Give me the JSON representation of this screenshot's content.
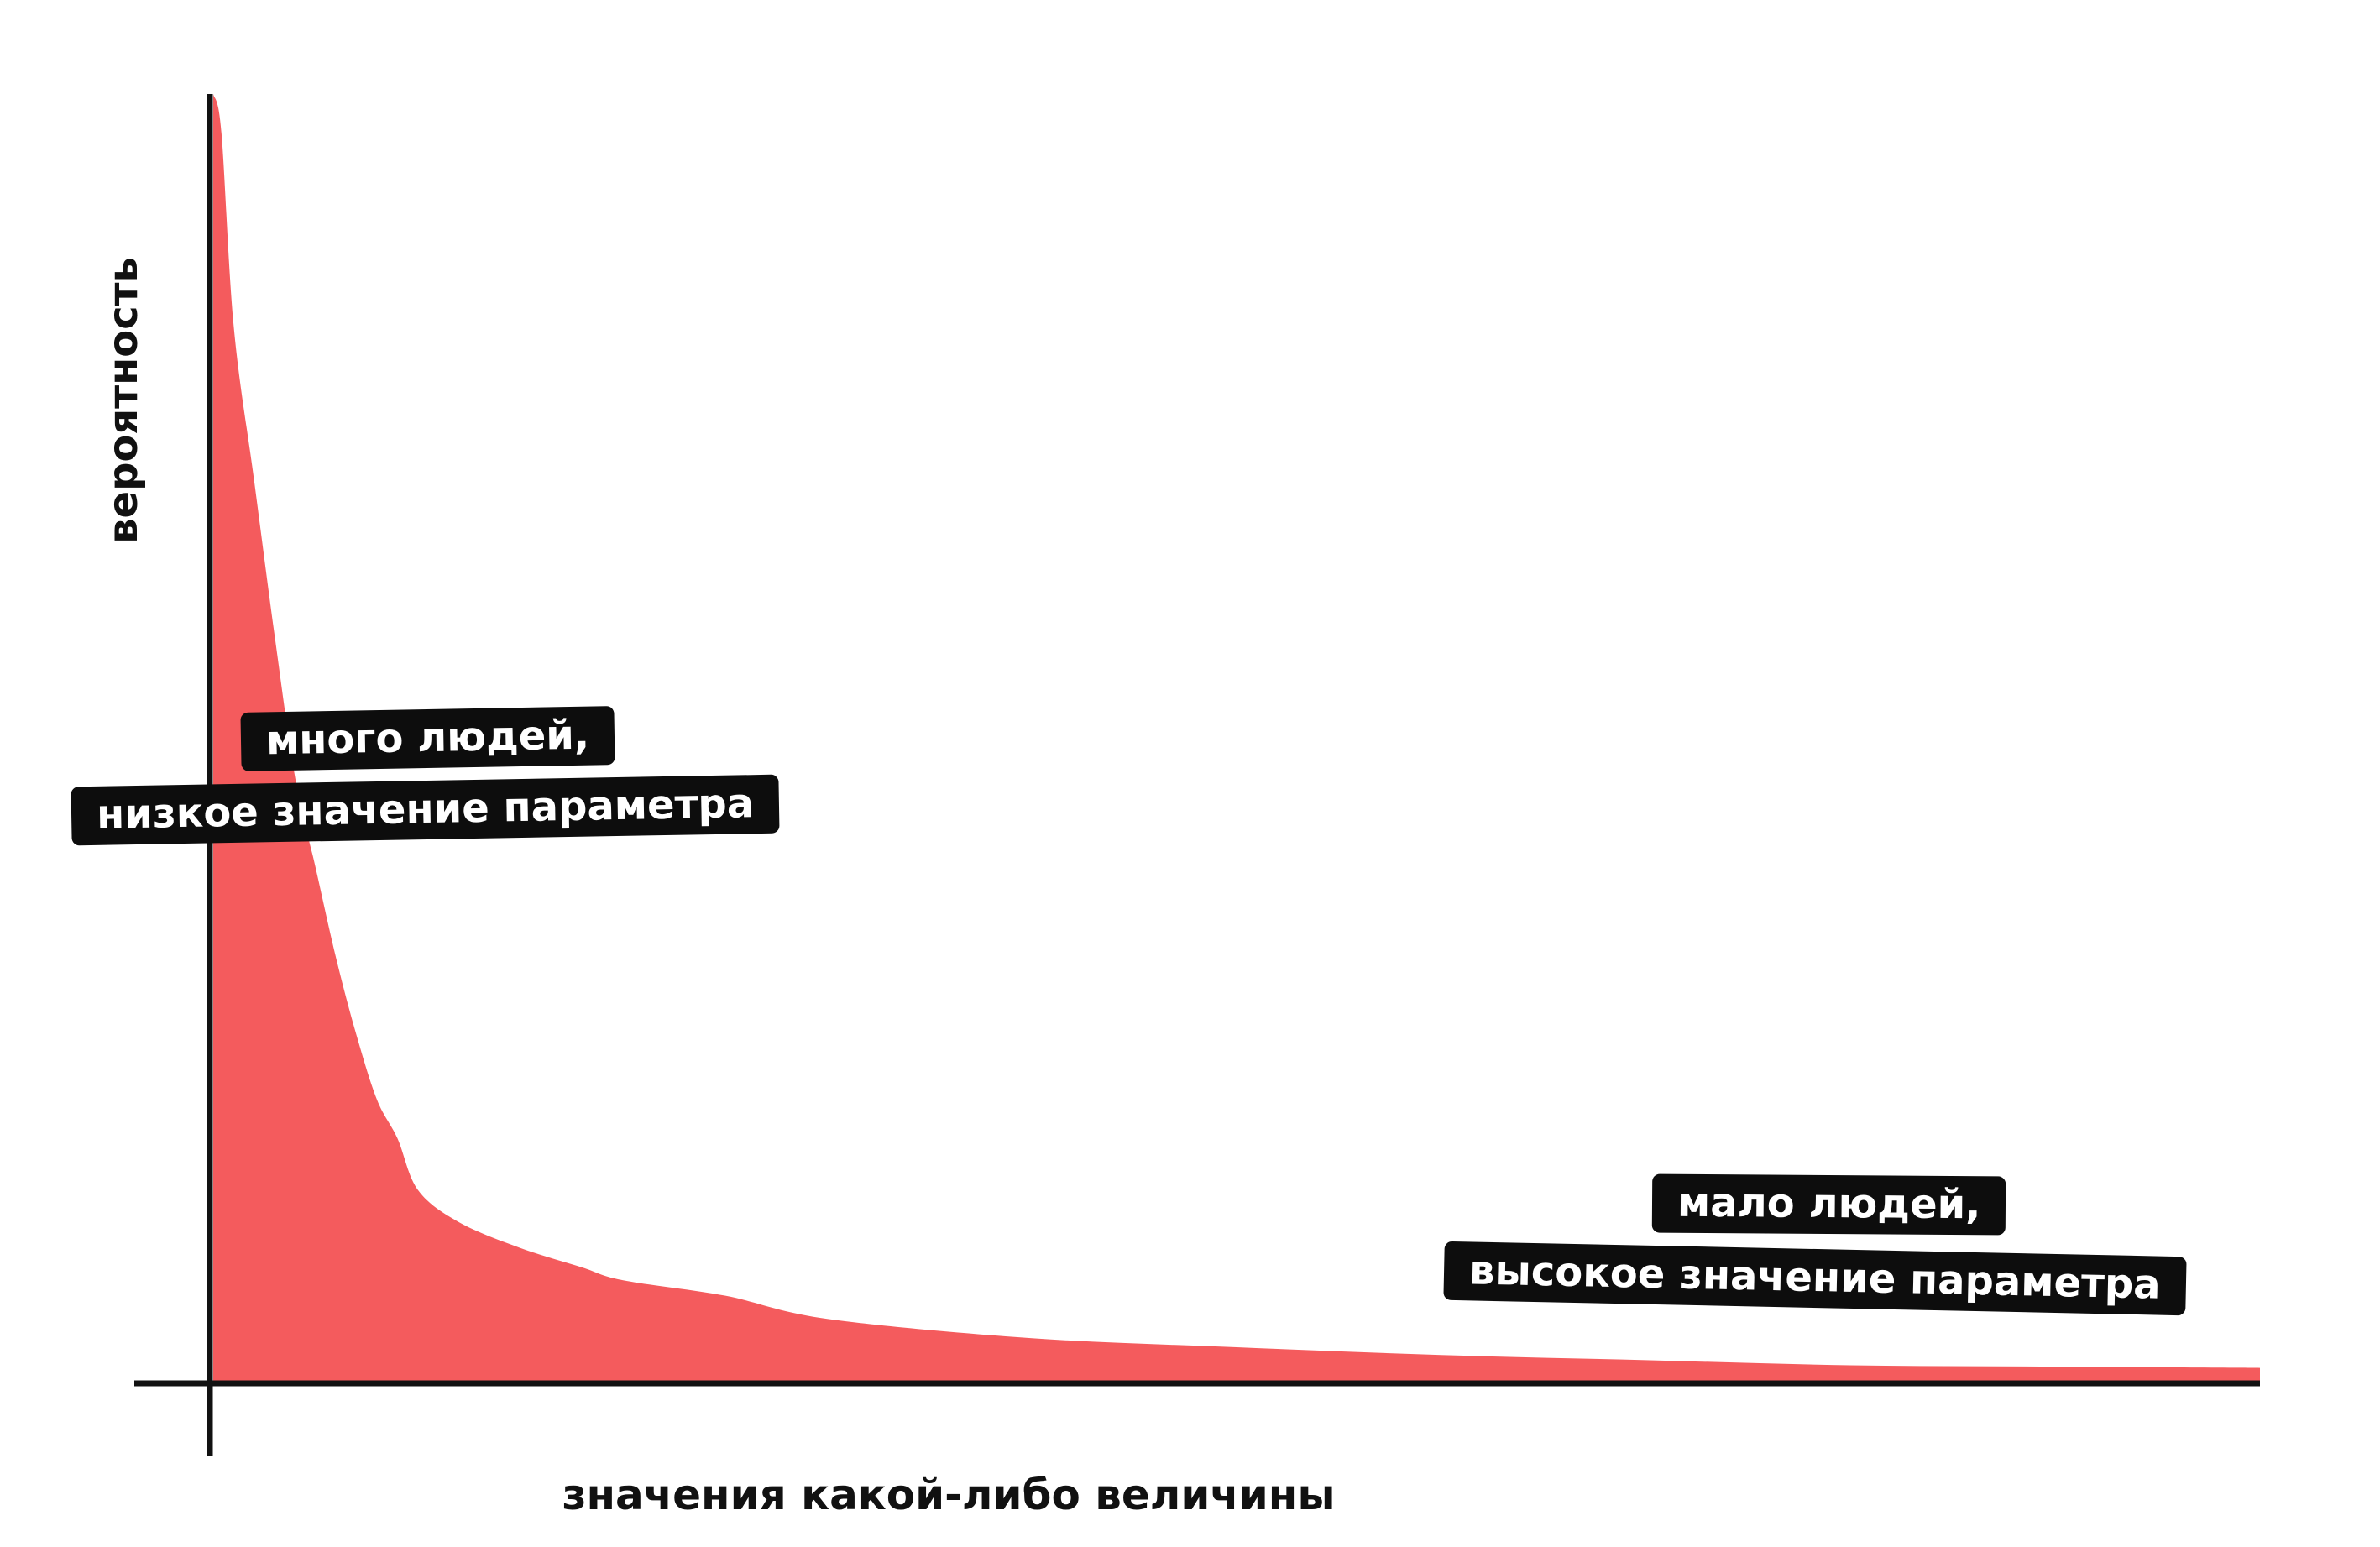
{
  "colors": {
    "fill": "#f45b5d",
    "axis": "#111111",
    "tag_background": "#0d0d0d",
    "tag_text": "#ffffff"
  },
  "annotations": {
    "high": {
      "line1": "много людей,",
      "line2": "низкое значение параметра"
    },
    "low": {
      "line1": "мало людей,",
      "line2": "высокое значение параметра"
    }
  },
  "chart_data": {
    "type": "area",
    "title": "",
    "xlabel": "значения какой-либо величины",
    "ylabel": "вероятность",
    "xlim": [
      0,
      100
    ],
    "ylim": [
      0,
      100
    ],
    "grid": false,
    "legend": "none",
    "ticks": "none",
    "x": [
      0,
      0.4,
      1,
      2,
      3,
      4,
      5,
      6,
      7,
      8,
      9,
      10,
      12,
      15,
      18,
      20,
      25,
      30,
      40,
      50,
      60,
      70,
      80,
      90,
      100
    ],
    "values": [
      100,
      97,
      82,
      70,
      58,
      47,
      40,
      33,
      27,
      22,
      19,
      15,
      12.5,
      10.5,
      9,
      8,
      6.8,
      5,
      3.5,
      2.8,
      2.2,
      1.8,
      1.4,
      1.3,
      1.2
    ]
  }
}
